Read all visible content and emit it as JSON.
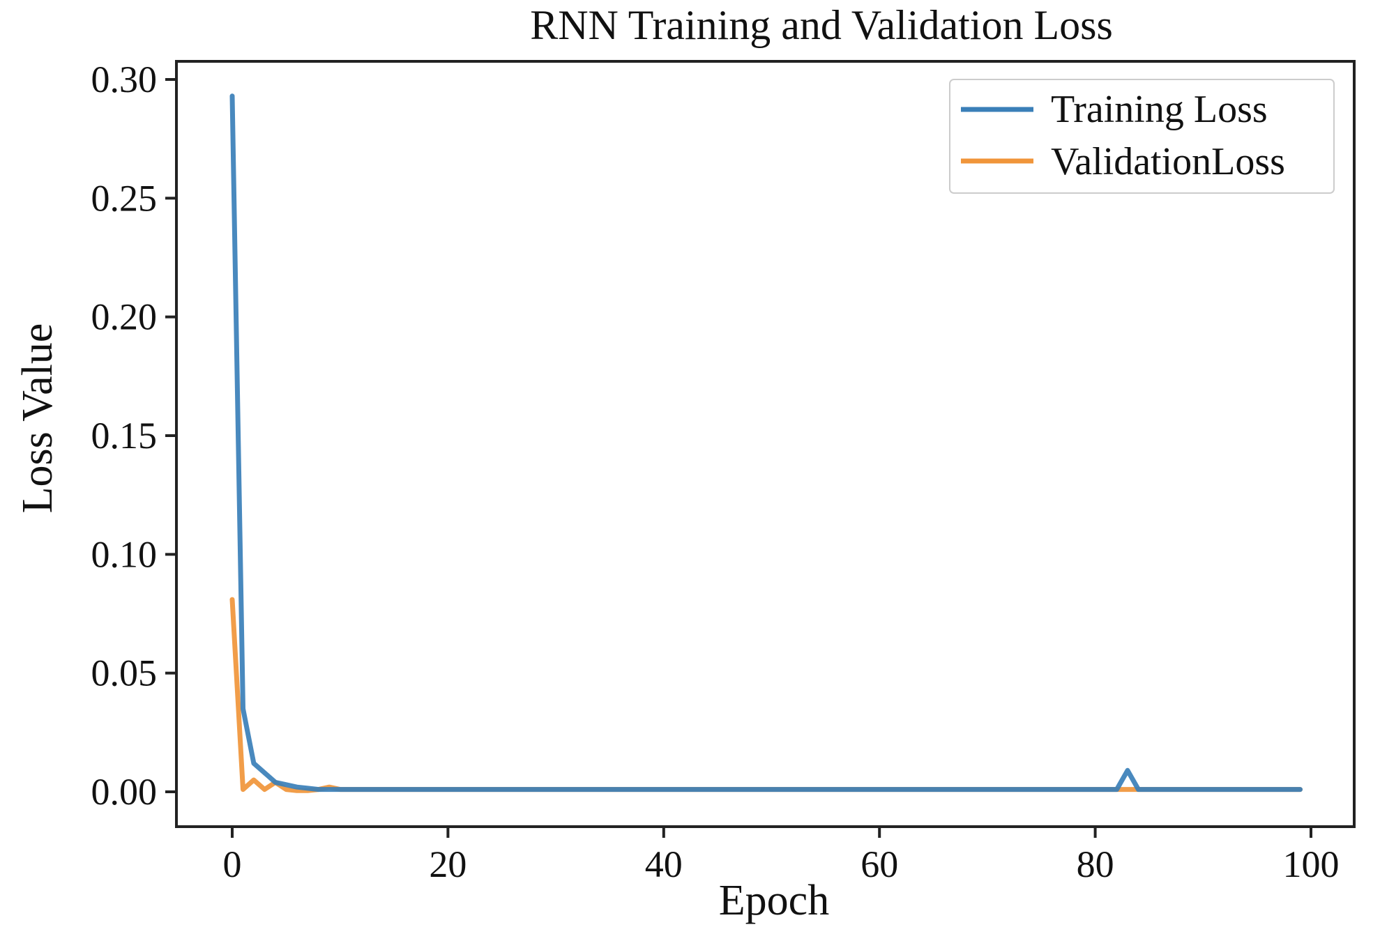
{
  "chart_data": {
    "type": "line",
    "title": "RNN Training and Validation Loss",
    "xlabel": "Epoch",
    "ylabel": "Loss Value",
    "xlim": [
      -5,
      104
    ],
    "ylim": [
      -0.015,
      0.308
    ],
    "xticks": [
      0,
      20,
      40,
      60,
      80,
      100
    ],
    "xtick_labels": [
      "0",
      "20",
      "40",
      "60",
      "80",
      "100"
    ],
    "yticks": [
      0.0,
      0.05,
      0.1,
      0.15,
      0.2,
      0.25,
      0.3
    ],
    "ytick_labels": [
      "0.00",
      "0.05",
      "0.10",
      "0.15",
      "0.20",
      "0.25",
      "0.30"
    ],
    "grid": false,
    "legend_position": "top-right",
    "series": [
      {
        "name": "Training Loss",
        "color": "#3a7fb8",
        "values": [
          0.293,
          0.035,
          0.012,
          0.008,
          0.004,
          0.003,
          0.002,
          0.0015,
          0.001,
          0.001,
          0.001,
          0.001,
          0.001,
          0.001,
          0.001,
          0.001,
          0.001,
          0.001,
          0.001,
          0.001,
          0.001,
          0.001,
          0.001,
          0.001,
          0.001,
          0.001,
          0.001,
          0.001,
          0.001,
          0.001,
          0.001,
          0.001,
          0.001,
          0.001,
          0.001,
          0.001,
          0.001,
          0.001,
          0.001,
          0.001,
          0.001,
          0.001,
          0.001,
          0.001,
          0.001,
          0.001,
          0.001,
          0.001,
          0.001,
          0.001,
          0.001,
          0.001,
          0.001,
          0.001,
          0.001,
          0.001,
          0.001,
          0.001,
          0.001,
          0.001,
          0.001,
          0.001,
          0.001,
          0.001,
          0.001,
          0.001,
          0.001,
          0.001,
          0.001,
          0.001,
          0.001,
          0.001,
          0.001,
          0.001,
          0.001,
          0.001,
          0.001,
          0.001,
          0.001,
          0.001,
          0.001,
          0.001,
          0.001,
          0.009,
          0.001,
          0.001,
          0.001,
          0.001,
          0.001,
          0.001,
          0.001,
          0.001,
          0.001,
          0.001,
          0.001,
          0.001,
          0.001,
          0.001,
          0.001,
          0.001
        ]
      },
      {
        "name": "ValidationLoss",
        "color": "#f0953a",
        "values": [
          0.081,
          0.001,
          0.005,
          0.001,
          0.004,
          0.001,
          0.0005,
          0.0005,
          0.001,
          0.002,
          0.001,
          0.001,
          0.001,
          0.001,
          0.001,
          0.001,
          0.001,
          0.001,
          0.001,
          0.001,
          0.001,
          0.001,
          0.001,
          0.001,
          0.001,
          0.001,
          0.001,
          0.001,
          0.001,
          0.001,
          0.001,
          0.001,
          0.001,
          0.001,
          0.001,
          0.001,
          0.001,
          0.001,
          0.001,
          0.001,
          0.001,
          0.001,
          0.001,
          0.001,
          0.001,
          0.001,
          0.001,
          0.001,
          0.001,
          0.001,
          0.001,
          0.001,
          0.001,
          0.001,
          0.001,
          0.001,
          0.001,
          0.001,
          0.001,
          0.001,
          0.001,
          0.001,
          0.001,
          0.001,
          0.001,
          0.001,
          0.001,
          0.001,
          0.001,
          0.001,
          0.001,
          0.001,
          0.001,
          0.001,
          0.001,
          0.001,
          0.001,
          0.001,
          0.001,
          0.001,
          0.001,
          0.001,
          0.001,
          0.001,
          0.001,
          0.001,
          0.001,
          0.001,
          0.001,
          0.001,
          0.001,
          0.001,
          0.001,
          0.001,
          0.001,
          0.001,
          0.001,
          0.001,
          0.001,
          0.001
        ]
      }
    ]
  }
}
